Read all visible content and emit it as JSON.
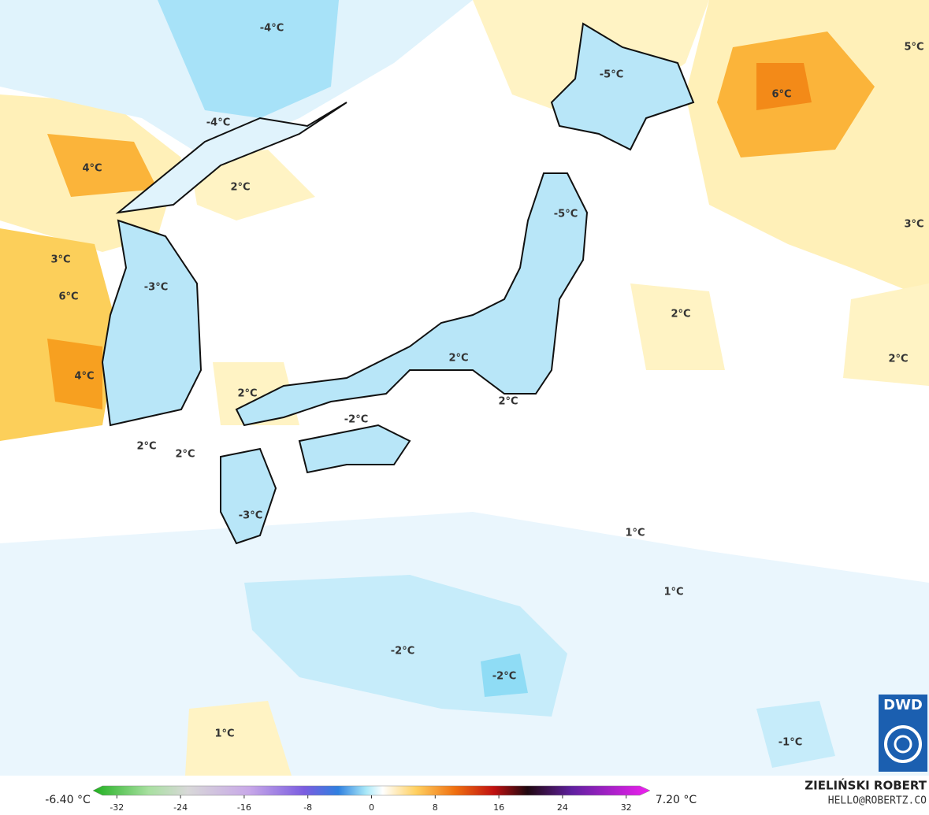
{
  "map": {
    "labels": [
      "-4°C",
      "-5°C",
      "6°C",
      "5°C",
      "-4°C",
      "4°C",
      "2°C",
      "-5°C",
      "3°C",
      "3°C",
      "-3°C",
      "6°C",
      "2°C",
      "2°C",
      "2°C",
      "4°C",
      "2°C",
      "2°C",
      "-2°C",
      "2°C",
      "2°C",
      "-3°C",
      "1°C",
      "1°C",
      "-2°C",
      "-2°C",
      "1°C",
      "-1°C"
    ],
    "logo": "DWD"
  },
  "colorbar": {
    "min_label": "-6.40 °C",
    "max_label": "7.20 °C",
    "lim": [
      -35,
      35
    ],
    "ticks": [
      -32,
      -24,
      -16,
      -8,
      0,
      8,
      16,
      24,
      32
    ]
  },
  "credits": {
    "name": "ZIELIŃSKI ROBERT",
    "email": "HELLO@ROBERTZ.CO"
  }
}
